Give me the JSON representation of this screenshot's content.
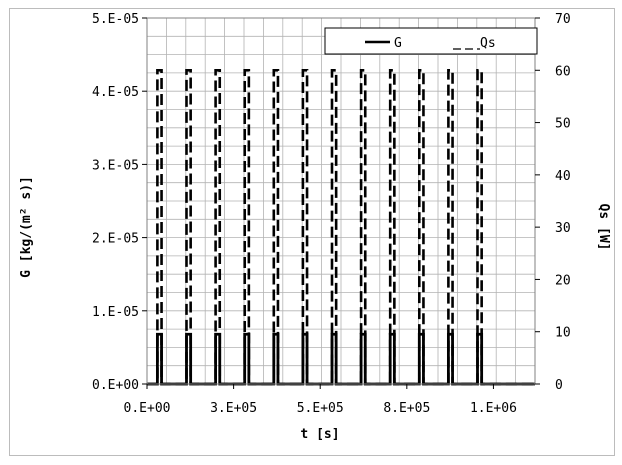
{
  "chart_data": {
    "type": "line",
    "title": "",
    "xlabel": "t [s]",
    "ylabel": "G [kg/(m² s)]",
    "y2label": "Qs [W]",
    "xlim": [
      0,
      1120000
    ],
    "ylim": [
      0,
      5e-05
    ],
    "y2lim": [
      0,
      70
    ],
    "x_ticks": [
      0,
      250000,
      500000,
      750000,
      1000000
    ],
    "x_tick_labels": [
      "0.E+00",
      "3.E+05",
      "5.E+05",
      "8.E+05",
      "1.E+06"
    ],
    "y_ticks": [
      0,
      1e-05,
      2e-05,
      3e-05,
      4e-05,
      5e-05
    ],
    "y_tick_labels": [
      "0.E+00",
      "1.E-05",
      "2.E-05",
      "3.E-05",
      "4.E-05",
      "5.E-05"
    ],
    "y2_ticks": [
      0,
      10,
      20,
      30,
      40,
      50,
      60,
      70
    ],
    "y2_tick_labels": [
      "0",
      "10",
      "20",
      "30",
      "40",
      "50",
      "60",
      "70"
    ],
    "grid": true,
    "legend_position": "top-right",
    "cycle_starts": [
      30000,
      114000,
      198000,
      282000,
      366000,
      450000,
      534000,
      618000,
      702000,
      786000,
      870000,
      954000
    ],
    "pulse_width": 12000,
    "series": [
      {
        "name": "G",
        "axis": "left",
        "style": "solid",
        "pulse_value": 6.8e-06,
        "base_value": 0
      },
      {
        "name": "Qs",
        "axis": "right",
        "style": "dashed",
        "pulse_value": 60,
        "base_value": 0
      }
    ],
    "colors": {
      "line": "#000000",
      "grid": "#b3b3b3",
      "frame": "#bcbcbc"
    }
  }
}
